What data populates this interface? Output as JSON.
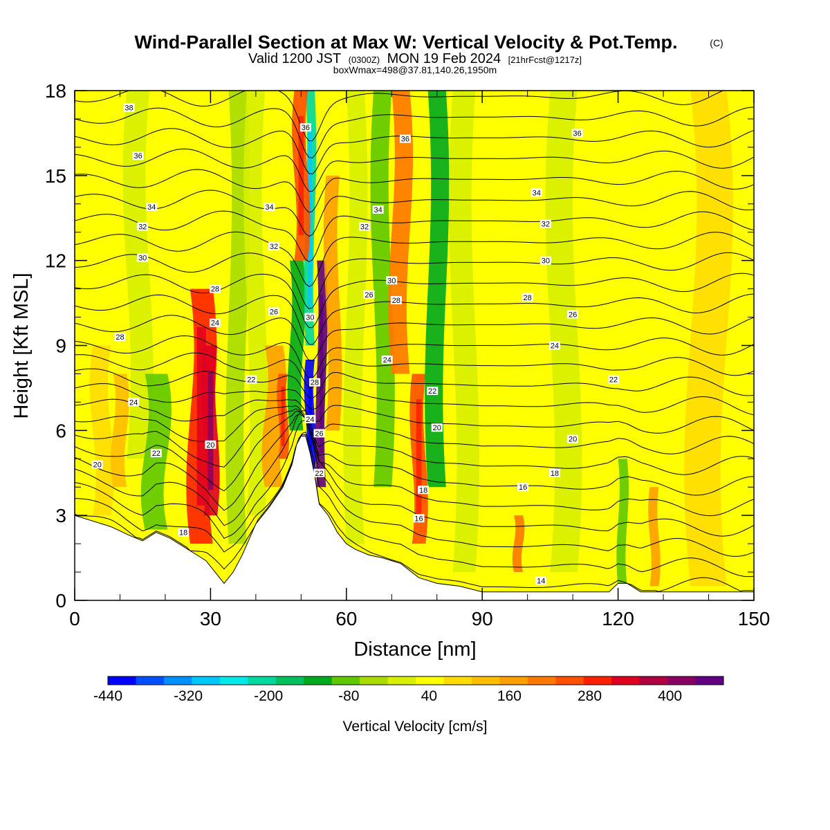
{
  "titles": {
    "main": "Wind-Parallel Section at Max W: Vertical Velocity & Pot.Temp.",
    "main_mark": "(C)",
    "sub_a": "Valid 1200 JST",
    "sub_b": "(0300Z)",
    "sub_c": "MON 19 Feb 2024",
    "sub_d": "[21hrFcst@1217z]",
    "line3": "boxWmax=498@37.81,140.26,1950m"
  },
  "chart_data": {
    "type": "heatmap",
    "title": "Wind-Parallel Section at Max W: Vertical Velocity & Pot.Temp.",
    "xlabel": "Distance [nm]",
    "ylabel": "Height [Kft MSL]",
    "xlim": [
      0,
      150
    ],
    "ylim": [
      0,
      18
    ],
    "xticks": [
      0,
      30,
      60,
      90,
      120,
      150
    ],
    "yticks": [
      0,
      3,
      6,
      9,
      12,
      15,
      18
    ],
    "colorbar": {
      "title": "Vertical Velocity [cm/s]",
      "labels": [
        "-440",
        "-320",
        "-200",
        "-80",
        "40",
        "160",
        "280",
        "400"
      ],
      "label_values": [
        -440,
        -320,
        -200,
        -80,
        40,
        160,
        280,
        400
      ],
      "min": -440,
      "max": 480,
      "step": 40,
      "colors": [
        "#0000ff",
        "#0050ff",
        "#0090ff",
        "#00c8ff",
        "#00e8e8",
        "#00d8a0",
        "#00c060",
        "#00aa20",
        "#60c800",
        "#a8dc00",
        "#d8ef00",
        "#ffff00",
        "#ffdd00",
        "#ffbe00",
        "#ffa000",
        "#ff7800",
        "#ff5000",
        "#ff2000",
        "#e00020",
        "#b00040",
        "#880060",
        "#600080"
      ]
    },
    "background_value_cm_s": 30,
    "terrain_kft": {
      "x": [
        0,
        2,
        8,
        12,
        15,
        18,
        21,
        24,
        27,
        29,
        31,
        33,
        35,
        37,
        40,
        43,
        46,
        48,
        49,
        50,
        51,
        52,
        53,
        54,
        56,
        58,
        60,
        62,
        65,
        68,
        72,
        76,
        80,
        85,
        90,
        95,
        100,
        110,
        118,
        120,
        122,
        125,
        135,
        150
      ],
      "y": [
        3.0,
        2.9,
        2.6,
        2.3,
        2.1,
        2.4,
        2.2,
        1.9,
        1.6,
        1.4,
        1.0,
        0.6,
        1.0,
        1.6,
        2.7,
        3.3,
        4.0,
        4.8,
        5.5,
        5.8,
        5.8,
        5.2,
        4.4,
        3.4,
        3.0,
        2.4,
        2.0,
        1.8,
        1.6,
        1.5,
        1.3,
        0.8,
        0.6,
        0.5,
        0.3,
        0.3,
        0.3,
        0.3,
        0.3,
        0.6,
        0.6,
        0.3,
        0.3,
        0.3
      ]
    },
    "vertical_velocity_features": [
      {
        "x": 6,
        "y0": 3,
        "y1": 9,
        "w": 4,
        "v": 60
      },
      {
        "x": 10,
        "y0": 4,
        "y1": 8,
        "w": 3,
        "v": 80
      },
      {
        "x": 14,
        "y0": 5,
        "y1": 18,
        "w": 5,
        "v": -40
      },
      {
        "x": 18,
        "y0": 2.5,
        "y1": 8,
        "w": 5,
        "v": -120
      },
      {
        "x": 24,
        "y0": 2.2,
        "y1": 7,
        "w": 3,
        "v": 0
      },
      {
        "x": 28,
        "y0": 2,
        "y1": 11,
        "w": 5,
        "v": 240
      },
      {
        "x": 30,
        "y0": 3,
        "y1": 9,
        "w": 3,
        "v": 300
      },
      {
        "x": 36,
        "y0": 2,
        "y1": 18,
        "w": 4,
        "v": -60
      },
      {
        "x": 40,
        "y0": 3,
        "y1": 18,
        "w": 4,
        "v": -20
      },
      {
        "x": 44,
        "y0": 4,
        "y1": 9,
        "w": 4,
        "v": 120
      },
      {
        "x": 46,
        "y0": 5,
        "y1": 8,
        "w": 2,
        "v": 200
      },
      {
        "x": 49,
        "y0": 6,
        "y1": 12,
        "w": 3,
        "v": -160
      },
      {
        "x": 52,
        "y0": 4.5,
        "y1": 8.5,
        "w": 2,
        "v": -440
      },
      {
        "x": 52,
        "y0": 9,
        "y1": 18,
        "w": 2,
        "v": -240
      },
      {
        "x": 50,
        "y0": 12,
        "y1": 18,
        "w": 3,
        "v": 200
      },
      {
        "x": 54.5,
        "y0": 4,
        "y1": 12,
        "w": 2,
        "v": 460
      },
      {
        "x": 57,
        "y0": 6,
        "y1": 15,
        "w": 3,
        "v": 120
      },
      {
        "x": 62,
        "y0": 2,
        "y1": 18,
        "w": 4,
        "v": -40
      },
      {
        "x": 68,
        "y0": 4,
        "y1": 18,
        "w": 4,
        "v": -100
      },
      {
        "x": 72,
        "y0": 8,
        "y1": 18,
        "w": 4,
        "v": 160
      },
      {
        "x": 76,
        "y0": 2,
        "y1": 8,
        "w": 3,
        "v": 200
      },
      {
        "x": 80,
        "y0": 4,
        "y1": 18,
        "w": 4,
        "v": -140
      },
      {
        "x": 86,
        "y0": 1,
        "y1": 18,
        "w": 5,
        "v": -20
      },
      {
        "x": 98,
        "y0": 1,
        "y1": 3,
        "w": 2,
        "v": 160
      },
      {
        "x": 108,
        "y0": 1,
        "y1": 18,
        "w": 6,
        "v": -20
      },
      {
        "x": 121,
        "y0": 0.5,
        "y1": 5,
        "w": 2,
        "v": -100
      },
      {
        "x": 128,
        "y0": 0.5,
        "y1": 4,
        "w": 2,
        "v": 120
      },
      {
        "x": 140,
        "y0": 0.5,
        "y1": 18,
        "w": 8,
        "v": 60
      }
    ],
    "theta_contours_C": [
      14,
      15,
      16,
      17,
      18,
      19,
      20,
      21,
      22,
      23,
      24,
      25,
      26,
      27,
      28,
      29,
      30,
      31,
      32,
      33,
      34,
      35,
      36,
      37,
      38
    ],
    "theta_contour_labels": [
      {
        "text": "38",
        "x": 12,
        "y": 17.4
      },
      {
        "text": "36",
        "x": 14,
        "y": 15.7
      },
      {
        "text": "36",
        "x": 51,
        "y": 16.7
      },
      {
        "text": "36",
        "x": 73,
        "y": 16.3
      },
      {
        "text": "36",
        "x": 111,
        "y": 16.5
      },
      {
        "text": "34",
        "x": 17,
        "y": 13.9
      },
      {
        "text": "34",
        "x": 43,
        "y": 13.9
      },
      {
        "text": "34",
        "x": 67,
        "y": 13.8
      },
      {
        "text": "34",
        "x": 102,
        "y": 14.4
      },
      {
        "text": "32",
        "x": 15,
        "y": 13.2
      },
      {
        "text": "32",
        "x": 44,
        "y": 12.5
      },
      {
        "text": "32",
        "x": 64,
        "y": 13.2
      },
      {
        "text": "32",
        "x": 104,
        "y": 13.3
      },
      {
        "text": "30",
        "x": 15,
        "y": 12.1
      },
      {
        "text": "30",
        "x": 70,
        "y": 11.3
      },
      {
        "text": "30",
        "x": 104,
        "y": 12.0
      },
      {
        "text": "30",
        "x": 52,
        "y": 10.0
      },
      {
        "text": "28",
        "x": 31,
        "y": 11.0
      },
      {
        "text": "28",
        "x": 71,
        "y": 10.6
      },
      {
        "text": "28",
        "x": 10,
        "y": 9.3
      },
      {
        "text": "28",
        "x": 100,
        "y": 10.7
      },
      {
        "text": "28",
        "x": 53,
        "y": 7.7
      },
      {
        "text": "26",
        "x": 44,
        "y": 10.2
      },
      {
        "text": "26",
        "x": 65,
        "y": 10.8
      },
      {
        "text": "26",
        "x": 110,
        "y": 10.1
      },
      {
        "text": "26",
        "x": 54,
        "y": 5.9
      },
      {
        "text": "24",
        "x": 31,
        "y": 9.8
      },
      {
        "text": "24",
        "x": 13,
        "y": 7.0
      },
      {
        "text": "24",
        "x": 69,
        "y": 8.5
      },
      {
        "text": "24",
        "x": 106,
        "y": 9.0
      },
      {
        "text": "24",
        "x": 52,
        "y": 6.4
      },
      {
        "text": "22",
        "x": 39,
        "y": 7.8
      },
      {
        "text": "22",
        "x": 79,
        "y": 7.4
      },
      {
        "text": "22",
        "x": 119,
        "y": 7.8
      },
      {
        "text": "22",
        "x": 18,
        "y": 5.2
      },
      {
        "text": "22",
        "x": 54,
        "y": 4.5
      },
      {
        "text": "20",
        "x": 30,
        "y": 5.5
      },
      {
        "text": "20",
        "x": 80,
        "y": 6.1
      },
      {
        "text": "20",
        "x": 110,
        "y": 5.7
      },
      {
        "text": "20",
        "x": 5,
        "y": 4.8
      },
      {
        "text": "18",
        "x": 77,
        "y": 3.9
      },
      {
        "text": "18",
        "x": 106,
        "y": 4.5
      },
      {
        "text": "18",
        "x": 24,
        "y": 2.4
      },
      {
        "text": "16",
        "x": 99,
        "y": 4.0
      },
      {
        "text": "16",
        "x": 76,
        "y": 2.9
      },
      {
        "text": "14",
        "x": 103,
        "y": 0.7
      }
    ]
  }
}
